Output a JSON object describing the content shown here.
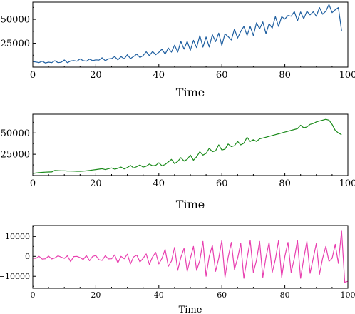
{
  "chart_data": [
    {
      "type": "line",
      "title": "",
      "xlabel": "Time",
      "ylabel": "",
      "xlim": [
        0,
        100
      ],
      "ylim": [
        0,
        68000
      ],
      "x_ticks": [
        0,
        20,
        40,
        60,
        80,
        100
      ],
      "y_ticks": [
        25000,
        50000
      ],
      "grid": false,
      "series": [
        {
          "name": "",
          "color": "#1f5fa0",
          "x_start": 0,
          "values": [
            5800,
            5400,
            4800,
            6200,
            4300,
            5200,
            4700,
            6700,
            4700,
            5100,
            7500,
            4600,
            6500,
            6800,
            6200,
            8600,
            6800,
            6200,
            8400,
            6800,
            7600,
            7300,
            9800,
            6800,
            8600,
            9000,
            11000,
            7600,
            11000,
            8700,
            13000,
            9000,
            11100,
            13600,
            10100,
            12000,
            16100,
            12000,
            16400,
            13000,
            15500,
            18800,
            13600,
            20000,
            15700,
            23000,
            15800,
            27000,
            18800,
            27000,
            17600,
            28000,
            20500,
            33000,
            20900,
            31500,
            21100,
            34000,
            26700,
            35600,
            22700,
            34800,
            32000,
            28400,
            39800,
            30400,
            37300,
            42700,
            33200,
            42500,
            33100,
            46300,
            40100,
            47300,
            35000,
            45500,
            40800,
            52900,
            42600,
            52800,
            50300,
            54000,
            53300,
            58100,
            48500,
            57800,
            50600,
            58400,
            54700,
            57900,
            53300,
            62300,
            55400,
            58500,
            65600,
            57000,
            60000,
            62300,
            38000
          ]
        }
      ]
    },
    {
      "type": "line",
      "title": "",
      "xlabel": "Time",
      "ylabel": "",
      "xlim": [
        0,
        100
      ],
      "ylim": [
        0,
        72000
      ],
      "x_ticks": [
        0,
        20,
        40,
        60,
        80,
        100
      ],
      "y_ticks": [
        25000,
        50000
      ],
      "grid": false,
      "series": [
        {
          "name": "",
          "color": "#1a8a1a",
          "x_start": 0,
          "values": [
            2500,
            3000,
            3500,
            3800,
            4000,
            4200,
            4300,
            6000,
            5800,
            5500,
            5600,
            5400,
            5300,
            5200,
            5000,
            5000,
            5200,
            5500,
            6000,
            6500,
            7000,
            7500,
            8000,
            7000,
            8000,
            9000,
            7500,
            8500,
            10000,
            7800,
            9500,
            12000,
            9000,
            10500,
            12500,
            10000,
            11000,
            13500,
            11500,
            12000,
            15000,
            11500,
            13000,
            16000,
            19000,
            14000,
            16500,
            21000,
            17000,
            19000,
            24000,
            18000,
            22000,
            28000,
            24000,
            26000,
            32000,
            28000,
            29000,
            36000,
            30000,
            31000,
            37000,
            34000,
            35000,
            40000,
            36000,
            38000,
            45000,
            40000,
            42000,
            40000,
            43000,
            44000,
            45000,
            46000,
            47000,
            48000,
            49000,
            50000,
            51000,
            52000,
            53000,
            54000,
            55000,
            59000,
            56000,
            57000,
            60000,
            61000,
            63000,
            64000,
            65000,
            66000,
            65000,
            60000,
            53000,
            50000,
            48000
          ]
        }
      ]
    },
    {
      "type": "line",
      "title": "",
      "xlabel": "Time",
      "ylabel": "",
      "xlim": [
        0,
        100
      ],
      "ylim": [
        -16000,
        15500
      ],
      "x_ticks": [
        0,
        20,
        40,
        60,
        80,
        100
      ],
      "y_ticks": [
        -10000,
        0,
        10000
      ],
      "grid": false,
      "series": [
        {
          "name": "",
          "color": "#e83faf",
          "x_start": 0,
          "values": [
            -900,
            -1000,
            0,
            -1400,
            -1200,
            100,
            -1300,
            -800,
            300,
            -400,
            -1000,
            300,
            -2600,
            -100,
            0,
            -600,
            -1600,
            400,
            -2200,
            0,
            400,
            -1700,
            -2000,
            300,
            -1300,
            -1200,
            700,
            -3300,
            0,
            -1200,
            1100,
            -3800,
            -300,
            600,
            -2800,
            -1000,
            1200,
            -4000,
            -300,
            2000,
            -3800,
            -1000,
            3500,
            -5000,
            -2400,
            4500,
            -7000,
            -500,
            4000,
            -7500,
            -1000,
            5000,
            -7000,
            -2000,
            7500,
            -10000,
            0,
            5500,
            -7500,
            -1000,
            8000,
            -10500,
            -500,
            7000,
            -6500,
            -1000,
            6500,
            -11000,
            -1000,
            8000,
            -8000,
            -2000,
            7500,
            -10500,
            -500,
            7000,
            -8000,
            -1500,
            8000,
            -10500,
            0,
            7000,
            -8000,
            -1000,
            8000,
            -11000,
            -1000,
            7500,
            -8500,
            -1000,
            6500,
            -9000,
            -1000,
            5000,
            -2500,
            -1000,
            6000,
            -3500,
            13000,
            -13000,
            -12500
          ]
        }
      ]
    }
  ]
}
